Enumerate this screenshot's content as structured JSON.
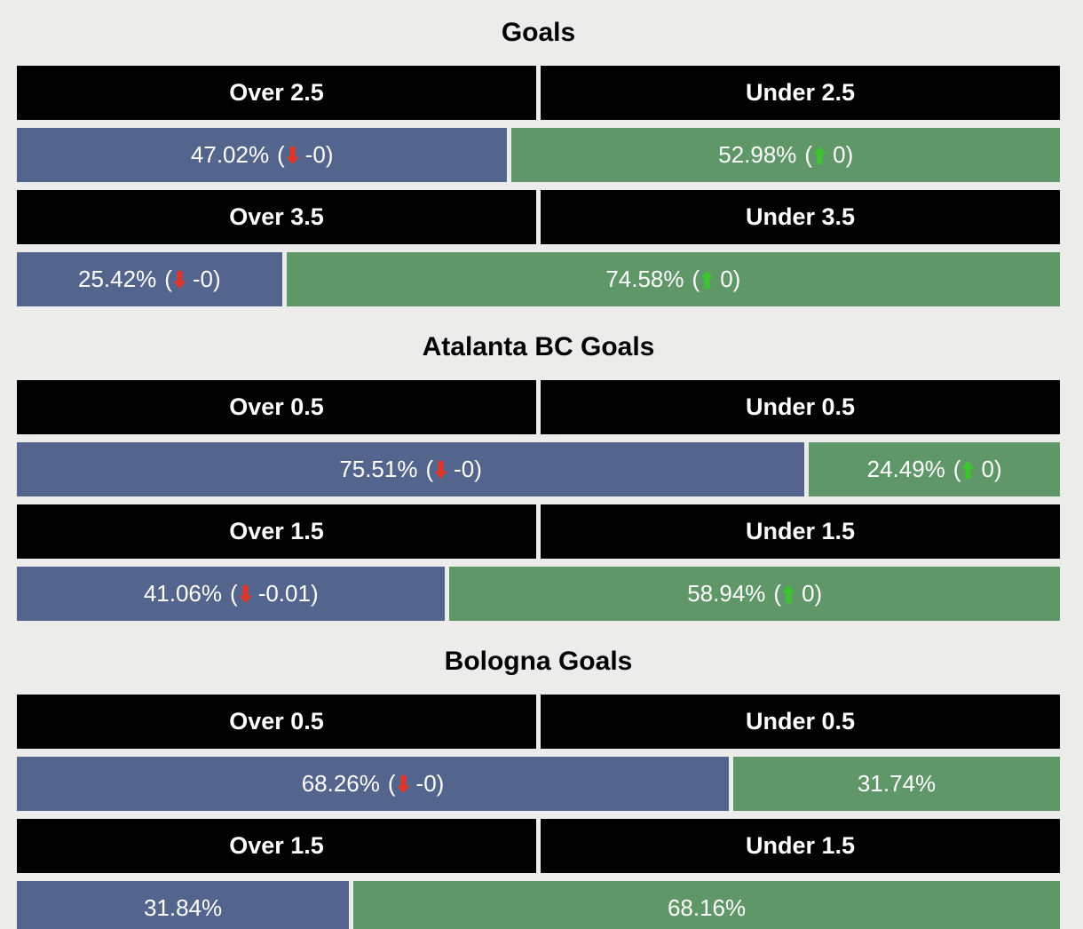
{
  "format": {
    "paren_open": "(",
    "paren_close": ")"
  },
  "colors": {
    "background": "#ececea",
    "header_bg": "#000000",
    "over_bar": "#54658d",
    "under_bar": "#5f9768",
    "bar_text": "#ffffff",
    "title_text": "#000000",
    "arrow_up": "#3ec431",
    "arrow_down": "#dc372b"
  },
  "chart_data": {
    "type": "bar",
    "orientation": "horizontal-stacked",
    "unit": "%",
    "xlim": [
      0,
      100
    ],
    "legend": "none",
    "sections": [
      {
        "title": "Goals",
        "rows": [
          {
            "header": {
              "left": "Over 2.5",
              "right": "Under 2.5"
            },
            "left": {
              "pct": 47.02,
              "label": "47.02%",
              "delta": "-0",
              "delta_dir": "down"
            },
            "right": {
              "pct": 52.98,
              "label": "52.98%",
              "delta": "0",
              "delta_dir": "up"
            }
          },
          {
            "header": {
              "left": "Over 3.5",
              "right": "Under 3.5"
            },
            "left": {
              "pct": 25.42,
              "label": "25.42%",
              "delta": "-0",
              "delta_dir": "down"
            },
            "right": {
              "pct": 74.58,
              "label": "74.58%",
              "delta": "0",
              "delta_dir": "up"
            }
          }
        ]
      },
      {
        "title": "Atalanta BC Goals",
        "rows": [
          {
            "header": {
              "left": "Over 0.5",
              "right": "Under 0.5"
            },
            "left": {
              "pct": 75.51,
              "label": "75.51%",
              "delta": "-0",
              "delta_dir": "down"
            },
            "right": {
              "pct": 24.49,
              "label": "24.49%",
              "delta": "0",
              "delta_dir": "up"
            }
          },
          {
            "header": {
              "left": "Over 1.5",
              "right": "Under 1.5"
            },
            "left": {
              "pct": 41.06,
              "label": "41.06%",
              "delta": "-0.01",
              "delta_dir": "down"
            },
            "right": {
              "pct": 58.94,
              "label": "58.94%",
              "delta": "0",
              "delta_dir": "up"
            }
          }
        ]
      },
      {
        "title": "Bologna Goals",
        "rows": [
          {
            "header": {
              "left": "Over 0.5",
              "right": "Under 0.5"
            },
            "left": {
              "pct": 68.26,
              "label": "68.26%",
              "delta": "-0",
              "delta_dir": "down"
            },
            "right": {
              "pct": 31.74,
              "label": "31.74%",
              "delta": null,
              "delta_dir": null
            }
          },
          {
            "header": {
              "left": "Over 1.5",
              "right": "Under 1.5"
            },
            "left": {
              "pct": 31.84,
              "label": "31.84%",
              "delta": null,
              "delta_dir": null
            },
            "right": {
              "pct": 68.16,
              "label": "68.16%",
              "delta": null,
              "delta_dir": null
            }
          }
        ]
      }
    ]
  }
}
